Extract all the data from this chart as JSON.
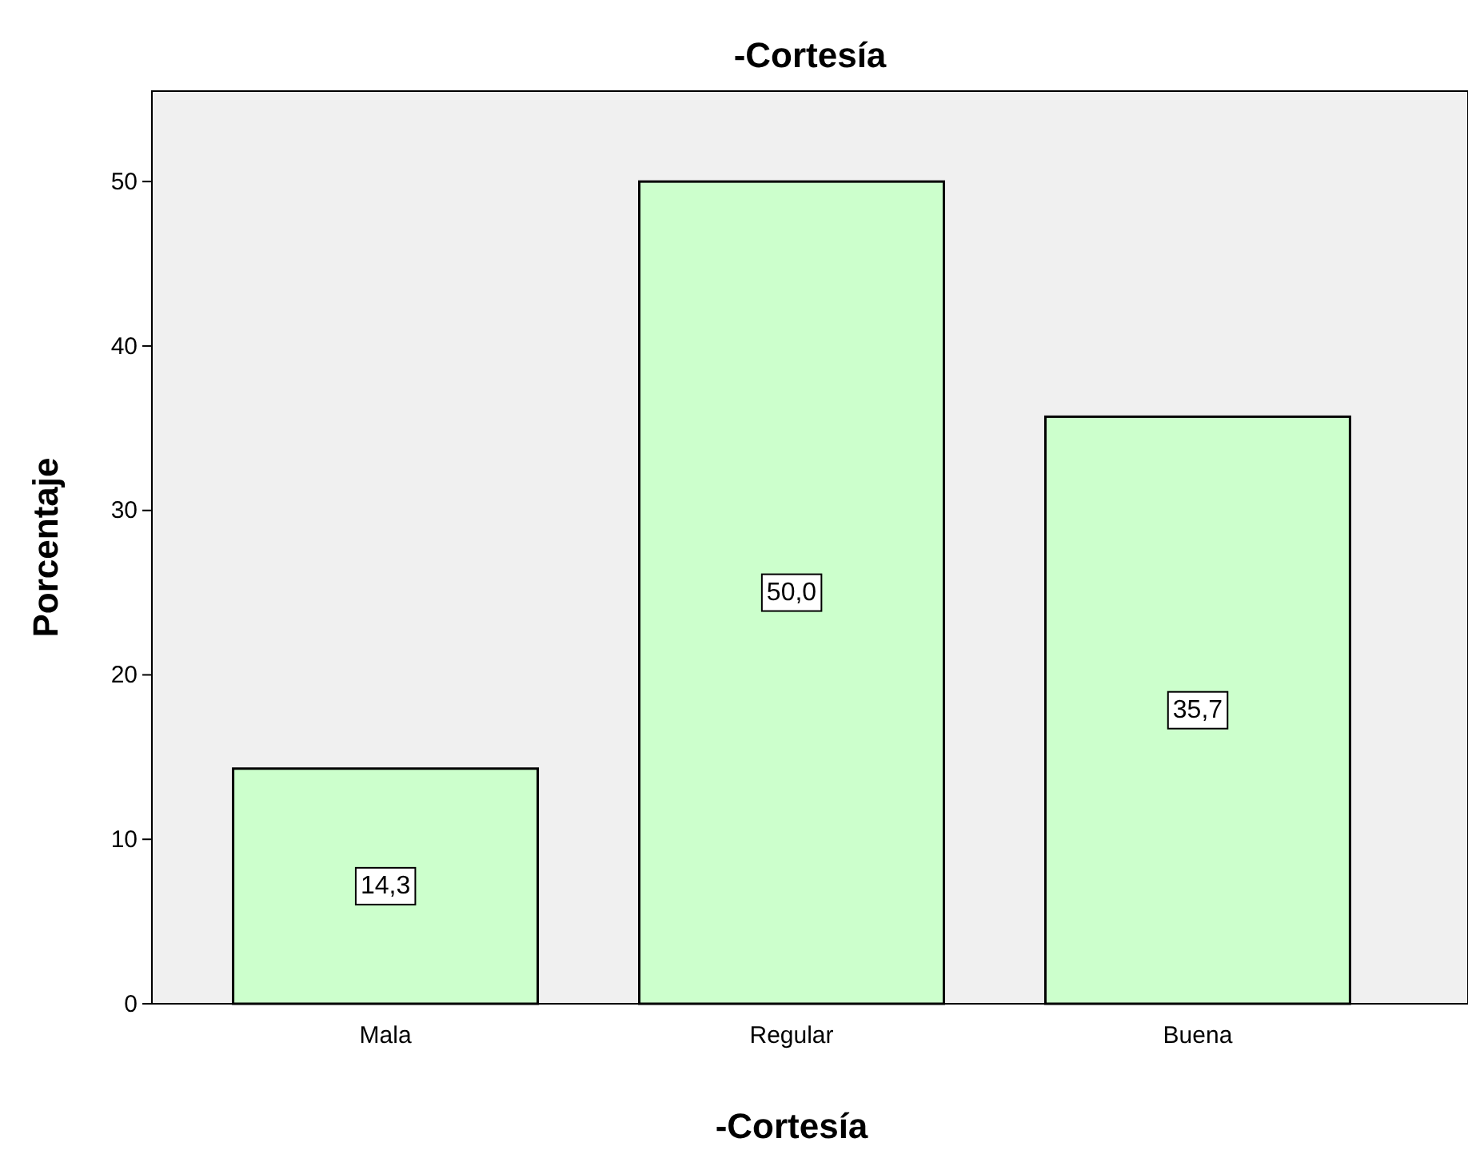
{
  "chart_data": {
    "type": "bar",
    "title": "-Cortesía",
    "xlabel": "-Cortesía",
    "ylabel": "Porcentaje",
    "categories": [
      "Mala",
      "Regular",
      "Buena"
    ],
    "values": [
      14.3,
      50.0,
      35.7
    ],
    "value_labels": [
      "14,3",
      "50,0",
      "35,7"
    ],
    "color": "#ccffcc",
    "ylim": [
      0,
      55.5
    ],
    "yticks": [
      0,
      10,
      20,
      30,
      40,
      50
    ],
    "grid": false
  }
}
